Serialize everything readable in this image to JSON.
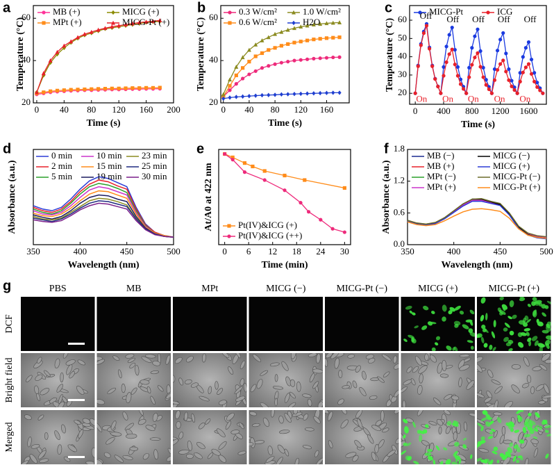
{
  "chart_data": [
    {
      "type": "line",
      "panel": "a",
      "xlabel": "Time (s)",
      "ylabel": "Temperature (°C)",
      "xlim": [
        -5,
        200
      ],
      "ylim": [
        20,
        66
      ],
      "xticks": [
        0,
        40,
        80,
        120,
        160,
        200
      ],
      "yticks": [
        20,
        40,
        60
      ],
      "legend": "upper left",
      "x": [
        0,
        10,
        20,
        30,
        40,
        50,
        60,
        70,
        80,
        90,
        100,
        110,
        120,
        130,
        140,
        150,
        160,
        170,
        180
      ],
      "series": [
        {
          "name": "MB (+)",
          "color": "#ff3399",
          "marker": "circle",
          "values": [
            24,
            24.5,
            25,
            25.3,
            25.5,
            25.7,
            25.8,
            26,
            26,
            26.1,
            26.2,
            26.3,
            26.3,
            26.4,
            26.5,
            26.5,
            26.6,
            26.6,
            26.7
          ]
        },
        {
          "name": "MPt (+)",
          "color": "#ff8c1a",
          "marker": "square",
          "values": [
            24.5,
            25,
            25.5,
            25.8,
            26,
            26.2,
            26.3,
            26.4,
            26.5,
            26.6,
            26.7,
            26.8,
            26.8,
            26.9,
            27,
            27,
            27.1,
            27.1,
            27.2
          ]
        },
        {
          "name": "MICG (+)",
          "color": "#8b8b00",
          "marker": "diamond",
          "values": [
            25,
            33,
            39,
            43,
            46,
            48.5,
            50.5,
            52,
            53,
            54,
            55,
            55.5,
            56,
            56.5,
            57,
            57.5,
            58,
            58.3,
            58.5
          ]
        },
        {
          "name": "MICG-Pt (+)",
          "color": "#e8202a",
          "marker": "triangle",
          "values": [
            25,
            34,
            40,
            44,
            47,
            49,
            51,
            52.5,
            53.5,
            54.5,
            55.3,
            56,
            56.5,
            57,
            57.5,
            58,
            58.3,
            58.6,
            59
          ]
        }
      ]
    },
    {
      "type": "line",
      "panel": "b",
      "xlabel": "Time (s)",
      "ylabel": "Temperature (°C)",
      "xlim": [
        -4,
        195
      ],
      "ylim": [
        20,
        66
      ],
      "xticks": [
        0,
        40,
        80,
        120,
        160
      ],
      "yticks": [
        20,
        40,
        60
      ],
      "legend": "upper left",
      "x": [
        0,
        10,
        20,
        30,
        40,
        50,
        60,
        70,
        80,
        90,
        100,
        110,
        120,
        130,
        140,
        150,
        160,
        170,
        180
      ],
      "series": [
        {
          "name": "0.3 W/cm²",
          "color": "#ee2a7b",
          "marker": "circle",
          "values": [
            23,
            26,
            29,
            31.5,
            33.5,
            35,
            36.5,
            37.5,
            38.3,
            39,
            39.5,
            40,
            40.3,
            40.6,
            40.9,
            41.1,
            41.3,
            41.5,
            41.6
          ]
        },
        {
          "name": "0.6 W/cm²",
          "color": "#ff8c1a",
          "marker": "square",
          "values": [
            23,
            28,
            33,
            36.5,
            39.5,
            42,
            43.5,
            45,
            46,
            47,
            47.8,
            48.5,
            49,
            49.5,
            50,
            50.3,
            50.6,
            50.8,
            51
          ]
        },
        {
          "name": "1.0 W/cm²",
          "color": "#8b8b20",
          "marker": "triangle",
          "values": [
            24,
            31,
            37,
            41.5,
            45,
            47.5,
            49.5,
            51,
            52.5,
            53.5,
            54.5,
            55.3,
            56,
            56.5,
            57,
            57.3,
            57.6,
            57.8,
            58
          ]
        },
        {
          "name": "H2O",
          "color": "#1f3fd0",
          "marker": "diamond",
          "values": [
            22,
            22.5,
            22.8,
            23,
            23.2,
            23.4,
            23.6,
            23.7,
            23.8,
            24,
            24.1,
            24.2,
            24.3,
            24.4,
            24.5,
            24.6,
            24.7,
            24.8,
            24.8
          ]
        }
      ]
    },
    {
      "type": "line",
      "panel": "c",
      "xlabel": "Time (s)",
      "ylabel": "Temperature (°C)",
      "xlim": [
        -80,
        1850
      ],
      "ylim": [
        14,
        68
      ],
      "xticks": [
        0,
        400,
        800,
        1200,
        1600
      ],
      "yticks": [
        20,
        30,
        40,
        50,
        60
      ],
      "legend": "upper left",
      "x": [
        0,
        40,
        80,
        120,
        160,
        200,
        240,
        280,
        320,
        360,
        400,
        440,
        480,
        520,
        560,
        600,
        640,
        680,
        720,
        760,
        800,
        840,
        880,
        920,
        960,
        1000,
        1040,
        1080,
        1120,
        1160,
        1200,
        1240,
        1280,
        1320,
        1360,
        1400,
        1440,
        1480,
        1520,
        1560,
        1600,
        1640,
        1680,
        1720,
        1760,
        1800
      ],
      "series": [
        {
          "name": "MICG-Pt",
          "color": "#1a3ae0",
          "marker": "circle",
          "values": [
            20,
            35.2,
            47,
            53.8,
            58,
            45.1,
            35.2,
            28,
            23.8,
            20,
            34.4,
            45.6,
            52,
            56,
            43.8,
            34.4,
            27.6,
            23.6,
            20,
            34,
            44.9,
            51.2,
            55,
            43.1,
            34,
            27.4,
            23.5,
            20,
            33.2,
            43.4,
            49.4,
            53,
            41.8,
            33.2,
            26.9,
            23.3,
            20,
            31.2,
            39.9,
            44.9,
            48,
            38.5,
            31.2,
            25.9,
            22.8,
            20
          ]
        },
        {
          "name": "ICG",
          "color": "#e8202a",
          "marker": "circle",
          "values": [
            20,
            34.8,
            46.3,
            52.9,
            57,
            44.4,
            34.8,
            27.8,
            23.7,
            20,
            29.6,
            37,
            41.4,
            44,
            35.8,
            29.6,
            25,
            22.4,
            20,
            28.8,
            35.6,
            39.6,
            42,
            34.5,
            28.8,
            24.6,
            22.2,
            20,
            27.2,
            32.8,
            36,
            38,
            31.9,
            27.2,
            23.8,
            21.8,
            20,
            26.4,
            31.4,
            34.2,
            36,
            30.6,
            26.4,
            23.4,
            21.6,
            20
          ]
        }
      ],
      "annotations": [
        {
          "text": "Off",
          "color": "#000000"
        },
        {
          "text": "Off",
          "color": "#000000"
        },
        {
          "text": "Off",
          "color": "#000000"
        },
        {
          "text": "Off",
          "color": "#000000"
        },
        {
          "text": "Off",
          "color": "#000000"
        },
        {
          "text": "On",
          "color": "#e8202a"
        },
        {
          "text": "On",
          "color": "#e8202a"
        },
        {
          "text": "On",
          "color": "#e8202a"
        },
        {
          "text": "On",
          "color": "#e8202a"
        },
        {
          "text": "On",
          "color": "#e8202a"
        }
      ]
    },
    {
      "type": "line",
      "panel": "d",
      "xlabel": "Wavelength (nm)",
      "ylabel": "Absorbance (a.u.)",
      "xlim": [
        350,
        500
      ],
      "ylim": [
        0.15,
        1.3
      ],
      "xticks": [
        350,
        400,
        450,
        500
      ],
      "legend": "upper left",
      "x": [
        350,
        360,
        370,
        380,
        390,
        400,
        410,
        420,
        430,
        440,
        450,
        460,
        470,
        480,
        490,
        500
      ],
      "series": [
        {
          "name": "0 min",
          "color": "#2b3bd6",
          "values": [
            0.62,
            0.58,
            0.56,
            0.6,
            0.7,
            0.82,
            0.92,
            0.97,
            0.95,
            0.9,
            0.85,
            0.6,
            0.4,
            0.3,
            0.26,
            0.24
          ]
        },
        {
          "name": "2 min",
          "color": "#e8202a",
          "values": [
            0.6,
            0.56,
            0.54,
            0.58,
            0.67,
            0.79,
            0.88,
            0.93,
            0.91,
            0.86,
            0.82,
            0.58,
            0.39,
            0.3,
            0.26,
            0.24
          ]
        },
        {
          "name": "5 min",
          "color": "#2aa02a",
          "values": [
            0.58,
            0.54,
            0.52,
            0.56,
            0.65,
            0.76,
            0.85,
            0.89,
            0.87,
            0.83,
            0.78,
            0.56,
            0.38,
            0.29,
            0.26,
            0.24
          ]
        },
        {
          "name": "10 min",
          "color": "#cc33cc",
          "values": [
            0.56,
            0.52,
            0.51,
            0.54,
            0.62,
            0.72,
            0.81,
            0.85,
            0.83,
            0.79,
            0.75,
            0.54,
            0.37,
            0.29,
            0.26,
            0.24
          ]
        },
        {
          "name": "15 min",
          "color": "#ff8c1a",
          "values": [
            0.53,
            0.5,
            0.49,
            0.52,
            0.59,
            0.68,
            0.76,
            0.8,
            0.79,
            0.75,
            0.71,
            0.52,
            0.36,
            0.29,
            0.26,
            0.24
          ]
        },
        {
          "name": "19 min",
          "color": "#1a1a5e",
          "values": [
            0.51,
            0.48,
            0.46,
            0.49,
            0.56,
            0.65,
            0.72,
            0.75,
            0.74,
            0.7,
            0.67,
            0.49,
            0.35,
            0.28,
            0.25,
            0.24
          ]
        },
        {
          "name": "23 min",
          "color": "#8b8b20",
          "values": [
            0.49,
            0.46,
            0.45,
            0.47,
            0.54,
            0.61,
            0.68,
            0.71,
            0.7,
            0.67,
            0.63,
            0.47,
            0.34,
            0.28,
            0.25,
            0.24
          ]
        },
        {
          "name": "25 min",
          "color": "#1f2a80",
          "values": [
            0.47,
            0.45,
            0.43,
            0.46,
            0.52,
            0.59,
            0.65,
            0.68,
            0.67,
            0.64,
            0.61,
            0.46,
            0.34,
            0.28,
            0.25,
            0.24
          ]
        },
        {
          "name": "30 min",
          "color": "#7a1f8a",
          "values": [
            0.45,
            0.43,
            0.42,
            0.44,
            0.5,
            0.57,
            0.62,
            0.65,
            0.64,
            0.61,
            0.58,
            0.44,
            0.33,
            0.27,
            0.25,
            0.24
          ]
        }
      ]
    },
    {
      "type": "line",
      "panel": "e",
      "xlabel": "Time (min)",
      "ylabel": "At/A0 at 422 nm",
      "xlim": [
        -1.5,
        31.5
      ],
      "ylim": [
        0.6,
        1.02
      ],
      "xticks": [
        0,
        6,
        12,
        18,
        24,
        30
      ],
      "legend": "lower left",
      "series": [
        {
          "name": "Pt(IV)&ICG (+)",
          "color": "#ff8c1a",
          "marker": "square",
          "x": [
            0,
            2,
            5,
            7,
            10,
            15,
            20,
            30
          ],
          "values": [
            1.0,
            0.985,
            0.96,
            0.945,
            0.925,
            0.905,
            0.885,
            0.85
          ]
        },
        {
          "name": "Pt(IV)&ICG (++)",
          "color": "#ee2a7b",
          "marker": "circle",
          "x": [
            0,
            2,
            5,
            10,
            15,
            19,
            21,
            24,
            27,
            30
          ],
          "values": [
            1.0,
            0.975,
            0.92,
            0.885,
            0.84,
            0.785,
            0.745,
            0.71,
            0.67,
            0.655
          ]
        }
      ]
    },
    {
      "type": "line",
      "panel": "f",
      "xlabel": "Wavelength (nm)",
      "ylabel": "Absorbance (a.u.)",
      "xlim": [
        350,
        500
      ],
      "ylim": [
        0,
        1.8
      ],
      "xticks": [
        350,
        400,
        450,
        500
      ],
      "yticks": [
        {
          "value": 0,
          "label": "0.0"
        },
        0.6,
        1.2,
        1.8
      ],
      "legend": "upper left",
      "x": [
        350,
        360,
        370,
        380,
        390,
        400,
        410,
        420,
        430,
        440,
        450,
        460,
        470,
        480,
        490,
        500
      ],
      "series": [
        {
          "name": "MB (−)",
          "color": "#1a2a90",
          "values": [
            0.45,
            0.4,
            0.38,
            0.41,
            0.5,
            0.63,
            0.76,
            0.85,
            0.85,
            0.8,
            0.76,
            0.58,
            0.33,
            0.2,
            0.15,
            0.13
          ]
        },
        {
          "name": "MB (+)",
          "color": "#e8202a",
          "values": [
            0.44,
            0.39,
            0.38,
            0.4,
            0.49,
            0.62,
            0.75,
            0.84,
            0.84,
            0.79,
            0.75,
            0.57,
            0.32,
            0.2,
            0.15,
            0.13
          ]
        },
        {
          "name": "MPt (−)",
          "color": "#2aa02a",
          "values": [
            0.46,
            0.4,
            0.39,
            0.41,
            0.5,
            0.63,
            0.76,
            0.86,
            0.86,
            0.81,
            0.77,
            0.59,
            0.34,
            0.21,
            0.16,
            0.14
          ]
        },
        {
          "name": "MPt (+)",
          "color": "#cc33cc",
          "values": [
            0.45,
            0.4,
            0.38,
            0.4,
            0.49,
            0.62,
            0.75,
            0.84,
            0.84,
            0.8,
            0.76,
            0.58,
            0.33,
            0.21,
            0.16,
            0.14
          ]
        },
        {
          "name": "MICG (−)",
          "color": "#000000",
          "values": [
            0.45,
            0.4,
            0.38,
            0.41,
            0.51,
            0.64,
            0.77,
            0.86,
            0.86,
            0.81,
            0.76,
            0.58,
            0.33,
            0.19,
            0.14,
            0.12
          ]
        },
        {
          "name": "MICG (+)",
          "color": "#2b3bd6",
          "values": [
            0.44,
            0.39,
            0.37,
            0.4,
            0.49,
            0.61,
            0.73,
            0.82,
            0.82,
            0.78,
            0.74,
            0.56,
            0.31,
            0.18,
            0.13,
            0.11
          ]
        },
        {
          "name": "MICG-Pt (−)",
          "color": "#6b6b2a",
          "values": [
            0.46,
            0.41,
            0.39,
            0.42,
            0.51,
            0.64,
            0.77,
            0.86,
            0.87,
            0.82,
            0.78,
            0.6,
            0.35,
            0.22,
            0.17,
            0.15
          ]
        },
        {
          "name": "MICG-Pt (+)",
          "color": "#ff8c1a",
          "values": [
            0.43,
            0.38,
            0.36,
            0.38,
            0.45,
            0.54,
            0.62,
            0.67,
            0.68,
            0.66,
            0.63,
            0.5,
            0.3,
            0.18,
            0.14,
            0.12
          ]
        }
      ]
    }
  ],
  "panel_g": {
    "label": "g",
    "columns": [
      "PBS",
      "MB",
      "MPt",
      "MICG (−)",
      "MICG-Pt (−)",
      "MICG (+)",
      "MICG-Pt (+)"
    ],
    "rows": [
      "DCF",
      "Bright field",
      "Merged"
    ]
  }
}
